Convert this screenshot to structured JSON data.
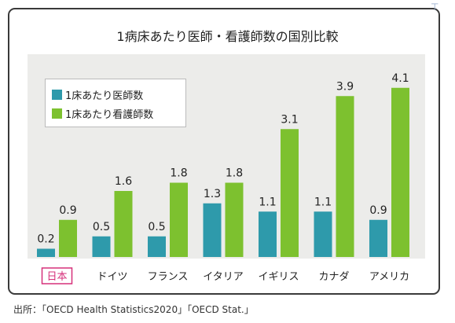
{
  "chart_data": {
    "type": "bar",
    "title": "1病床あたり医師・看護師数の国別比較",
    "categories": [
      "日本",
      "ドイツ",
      "フランス",
      "イタリア",
      "イギリス",
      "カナダ",
      "アメリカ"
    ],
    "series": [
      {
        "name": "1床あたり医師数",
        "values": [
          0.2,
          0.5,
          0.5,
          1.3,
          1.1,
          1.1,
          0.9
        ],
        "color": "#2e9aab"
      },
      {
        "name": "1床あたり看護師数",
        "values": [
          0.9,
          1.6,
          1.8,
          1.8,
          3.1,
          3.9,
          4.1
        ],
        "color": "#7dc12f"
      }
    ],
    "value_labels": {
      "doctors": [
        "0.2",
        "0.5",
        "0.5",
        "1.3",
        "1.1",
        "1.1",
        "0.9"
      ],
      "nurses": [
        "0.9",
        "1.6",
        "1.8",
        "1.8",
        "3.1",
        "3.9",
        "4.1"
      ]
    },
    "ylim": [
      0,
      4.3
    ],
    "grid": false,
    "legend_position": "top-left",
    "highlight_category": "日本",
    "highlight_color": "#d6307a"
  },
  "source": "出所：「OECD Health Statistics2020」「OECD Stat.」",
  "corner_mark": "⊤"
}
